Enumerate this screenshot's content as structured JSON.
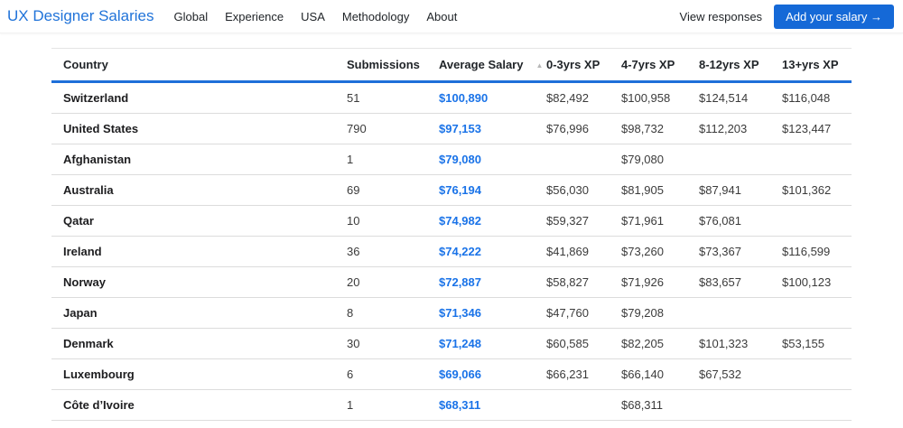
{
  "nav": {
    "brand": "UX Designer Salaries",
    "items": [
      {
        "label": "Global"
      },
      {
        "label": "Experience"
      },
      {
        "label": "USA"
      },
      {
        "label": "Methodology"
      },
      {
        "label": "About"
      }
    ],
    "view_responses_label": "View responses",
    "add_salary_label": "Add your salary →"
  },
  "colors": {
    "accent_blue": "#1a73e8",
    "button_blue": "#1569d7",
    "header_border_blue": "#1e6fd9"
  },
  "table": {
    "columns": [
      "Country",
      "Submissions",
      "Average Salary",
      "0-3yrs XP",
      "4-7yrs XP",
      "8-12yrs XP",
      "13+yrs XP"
    ],
    "sort_icon": "▲",
    "sorted_column": "Average Salary",
    "rows": [
      {
        "country": "Switzerland",
        "submissions": "51",
        "average": "$100,890",
        "xp03": "$82,492",
        "xp47": "$100,958",
        "xp812": "$124,514",
        "xp13": "$116,048"
      },
      {
        "country": "United States",
        "submissions": "790",
        "average": "$97,153",
        "xp03": "$76,996",
        "xp47": "$98,732",
        "xp812": "$112,203",
        "xp13": "$123,447"
      },
      {
        "country": "Afghanistan",
        "submissions": "1",
        "average": "$79,080",
        "xp03": "",
        "xp47": "$79,080",
        "xp812": "",
        "xp13": ""
      },
      {
        "country": "Australia",
        "submissions": "69",
        "average": "$76,194",
        "xp03": "$56,030",
        "xp47": "$81,905",
        "xp812": "$87,941",
        "xp13": "$101,362"
      },
      {
        "country": "Qatar",
        "submissions": "10",
        "average": "$74,982",
        "xp03": "$59,327",
        "xp47": "$71,961",
        "xp812": "$76,081",
        "xp13": ""
      },
      {
        "country": "Ireland",
        "submissions": "36",
        "average": "$74,222",
        "xp03": "$41,869",
        "xp47": "$73,260",
        "xp812": "$73,367",
        "xp13": "$116,599"
      },
      {
        "country": "Norway",
        "submissions": "20",
        "average": "$72,887",
        "xp03": "$58,827",
        "xp47": "$71,926",
        "xp812": "$83,657",
        "xp13": "$100,123"
      },
      {
        "country": "Japan",
        "submissions": "8",
        "average": "$71,346",
        "xp03": "$47,760",
        "xp47": "$79,208",
        "xp812": "",
        "xp13": ""
      },
      {
        "country": "Denmark",
        "submissions": "30",
        "average": "$71,248",
        "xp03": "$60,585",
        "xp47": "$82,205",
        "xp812": "$101,323",
        "xp13": "$53,155"
      },
      {
        "country": "Luxembourg",
        "submissions": "6",
        "average": "$69,066",
        "xp03": "$66,231",
        "xp47": "$66,140",
        "xp812": "$67,532",
        "xp13": ""
      },
      {
        "country": "Côte d’Ivoire",
        "submissions": "1",
        "average": "$68,311",
        "xp03": "",
        "xp47": "$68,311",
        "xp812": "",
        "xp13": ""
      }
    ]
  }
}
